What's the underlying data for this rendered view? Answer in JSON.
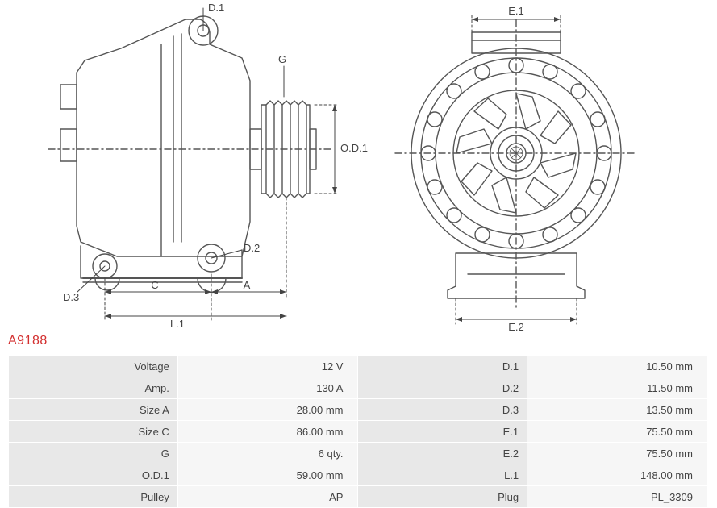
{
  "part_number": "A9188",
  "diagram": {
    "type": "technical-drawing",
    "stroke_color": "#555555",
    "dim_color": "#444444",
    "dash_pattern": "3,3",
    "stroke_width": 1.4,
    "side_view": {
      "labels": {
        "D1": "D.1",
        "D2": "D.2",
        "D3": "D.3",
        "G": "G",
        "OD1": "O.D.1",
        "C": "C",
        "A": "A",
        "L1": "L.1"
      }
    },
    "front_view": {
      "labels": {
        "E1": "E.1",
        "E2": "E.2"
      }
    }
  },
  "specs": {
    "rows": [
      {
        "l1": "Voltage",
        "v1": "12 V",
        "l2": "D.1",
        "v2": "10.50 mm"
      },
      {
        "l1": "Amp.",
        "v1": "130 A",
        "l2": "D.2",
        "v2": "11.50 mm"
      },
      {
        "l1": "Size A",
        "v1": "28.00 mm",
        "l2": "D.3",
        "v2": "13.50 mm"
      },
      {
        "l1": "Size C",
        "v1": "86.00 mm",
        "l2": "E.1",
        "v2": "75.50 mm"
      },
      {
        "l1": "G",
        "v1": "6 qty.",
        "l2": "E.2",
        "v2": "75.50 mm"
      },
      {
        "l1": "O.D.1",
        "v1": "59.00 mm",
        "l2": "L.1",
        "v2": "148.00 mm"
      },
      {
        "l1": "Pulley",
        "v1": "AP",
        "l2": "Plug",
        "v2": "PL_3309"
      }
    ]
  }
}
